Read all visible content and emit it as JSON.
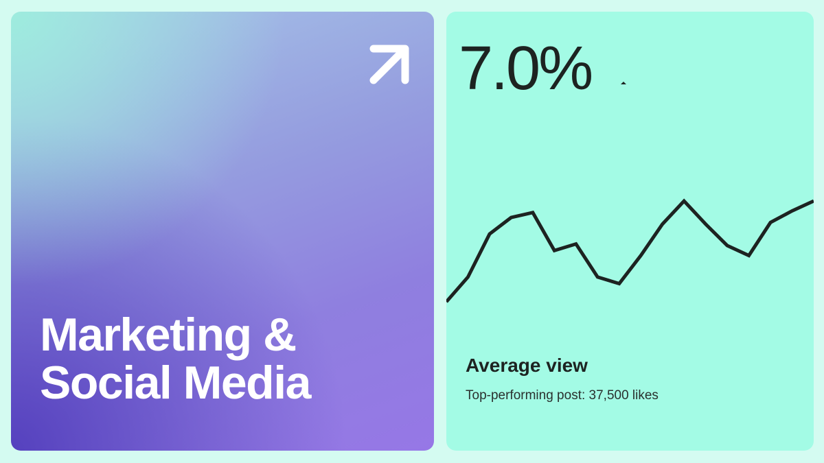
{
  "left_card": {
    "title_line1": "Marketing &",
    "title_line2": "Social Media",
    "icon": "arrow-up-right-icon"
  },
  "right_card": {
    "metric": "7.0%",
    "label": "Average view",
    "subtitle": "Top-performing post: 37,500 likes"
  },
  "colors": {
    "background": "#d4fbf1",
    "mint_card": "#a3fbe5",
    "line": "#1d2321",
    "gradient_start": "#9eecde",
    "gradient_end": "#5541be"
  },
  "chart_data": {
    "type": "line",
    "title": "",
    "xlabel": "",
    "ylabel": "",
    "grid": false,
    "values": [
      28,
      43,
      69,
      79,
      82,
      59,
      63,
      43,
      39,
      56,
      75,
      89,
      75,
      62,
      56,
      76,
      83,
      89
    ]
  }
}
